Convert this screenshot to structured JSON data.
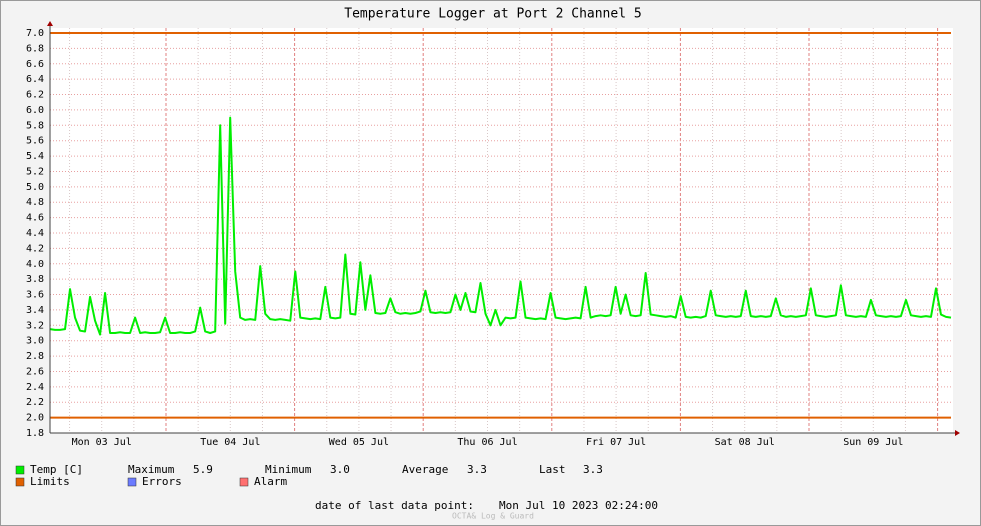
{
  "chart_data": {
    "type": "line",
    "title": "Temperature Logger at Port 2 Channel 5",
    "x_labels": [
      "Mon 03 Jul",
      "Tue 04 Jul",
      "Wed 05 Jul",
      "Thu 06 Jul",
      "Fri 07 Jul",
      "Sat 08 Jul",
      "Sun 09 Jul"
    ],
    "ylim": [
      1.8,
      7.0
    ],
    "yticks": [
      1.8,
      {
        "value": 2,
        "label": "2.0"
      },
      2.2,
      2.4,
      2.6,
      2.8,
      {
        "value": 3,
        "label": "3.0"
      },
      3.2,
      3.4,
      3.6,
      3.8,
      {
        "value": 4,
        "label": "4.0"
      },
      4.2,
      4.4,
      4.6,
      4.8,
      {
        "value": 5,
        "label": "5.0"
      },
      5.2,
      5.4,
      5.6,
      5.8,
      {
        "value": 6,
        "label": "6.0"
      },
      6.2,
      6.4,
      6.6,
      6.8,
      {
        "value": 7,
        "label": "7.0"
      }
    ],
    "grid": true,
    "series": [
      {
        "name": "Temp [C]",
        "color": "#00ee00",
        "values": [
          3.15,
          3.14,
          3.14,
          3.15,
          3.67,
          3.3,
          3.13,
          3.12,
          3.57,
          3.26,
          3.08,
          3.62,
          3.1,
          3.1,
          3.11,
          3.1,
          3.1,
          3.3,
          3.1,
          3.11,
          3.1,
          3.1,
          3.11,
          3.3,
          3.1,
          3.1,
          3.11,
          3.1,
          3.1,
          3.12,
          3.43,
          3.12,
          3.1,
          3.12,
          5.8,
          3.22,
          5.9,
          3.9,
          3.3,
          3.27,
          3.28,
          3.27,
          3.97,
          3.35,
          3.28,
          3.27,
          3.28,
          3.27,
          3.26,
          3.9,
          3.3,
          3.29,
          3.28,
          3.29,
          3.28,
          3.7,
          3.3,
          3.29,
          3.3,
          4.12,
          3.35,
          3.34,
          4.02,
          3.4,
          3.85,
          3.36,
          3.35,
          3.36,
          3.55,
          3.37,
          3.35,
          3.36,
          3.35,
          3.36,
          3.38,
          3.65,
          3.37,
          3.36,
          3.37,
          3.36,
          3.37,
          3.6,
          3.4,
          3.62,
          3.38,
          3.37,
          3.75,
          3.35,
          3.2,
          3.4,
          3.2,
          3.3,
          3.29,
          3.3,
          3.77,
          3.3,
          3.29,
          3.28,
          3.29,
          3.28,
          3.62,
          3.3,
          3.29,
          3.28,
          3.29,
          3.3,
          3.29,
          3.7,
          3.3,
          3.32,
          3.33,
          3.32,
          3.33,
          3.7,
          3.35,
          3.6,
          3.33,
          3.32,
          3.33,
          3.88,
          3.34,
          3.33,
          3.32,
          3.31,
          3.32,
          3.3,
          3.58,
          3.31,
          3.3,
          3.31,
          3.3,
          3.32,
          3.65,
          3.33,
          3.32,
          3.31,
          3.32,
          3.31,
          3.32,
          3.65,
          3.32,
          3.31,
          3.32,
          3.31,
          3.32,
          3.55,
          3.33,
          3.31,
          3.32,
          3.31,
          3.32,
          3.33,
          3.68,
          3.33,
          3.32,
          3.31,
          3.32,
          3.33,
          3.72,
          3.33,
          3.32,
          3.31,
          3.32,
          3.31,
          3.53,
          3.33,
          3.32,
          3.31,
          3.32,
          3.31,
          3.32,
          3.53,
          3.33,
          3.32,
          3.31,
          3.32,
          3.31,
          3.68,
          3.34,
          3.31,
          3.3
        ]
      }
    ],
    "limits": {
      "name": "Limits",
      "color": "#e06000",
      "values": [
        2.0,
        7.0
      ]
    },
    "legend_extra": [
      {
        "name": "Errors",
        "color": "#6b7bff"
      },
      {
        "name": "Alarm",
        "color": "#ff7070"
      }
    ],
    "stats": [
      {
        "name": "Maximum",
        "value": 5.9
      },
      {
        "name": "Minimum",
        "value": 3.0,
        "value_label": "3.0"
      },
      {
        "name": "Average",
        "value": 3.3
      },
      {
        "name": "Last",
        "value": 3.3
      }
    ],
    "footer_label": "date of last data point:",
    "footer_value": "Mon Jul 10 2023 02:24:00",
    "watermark": "OCTA& Log & Guard"
  }
}
